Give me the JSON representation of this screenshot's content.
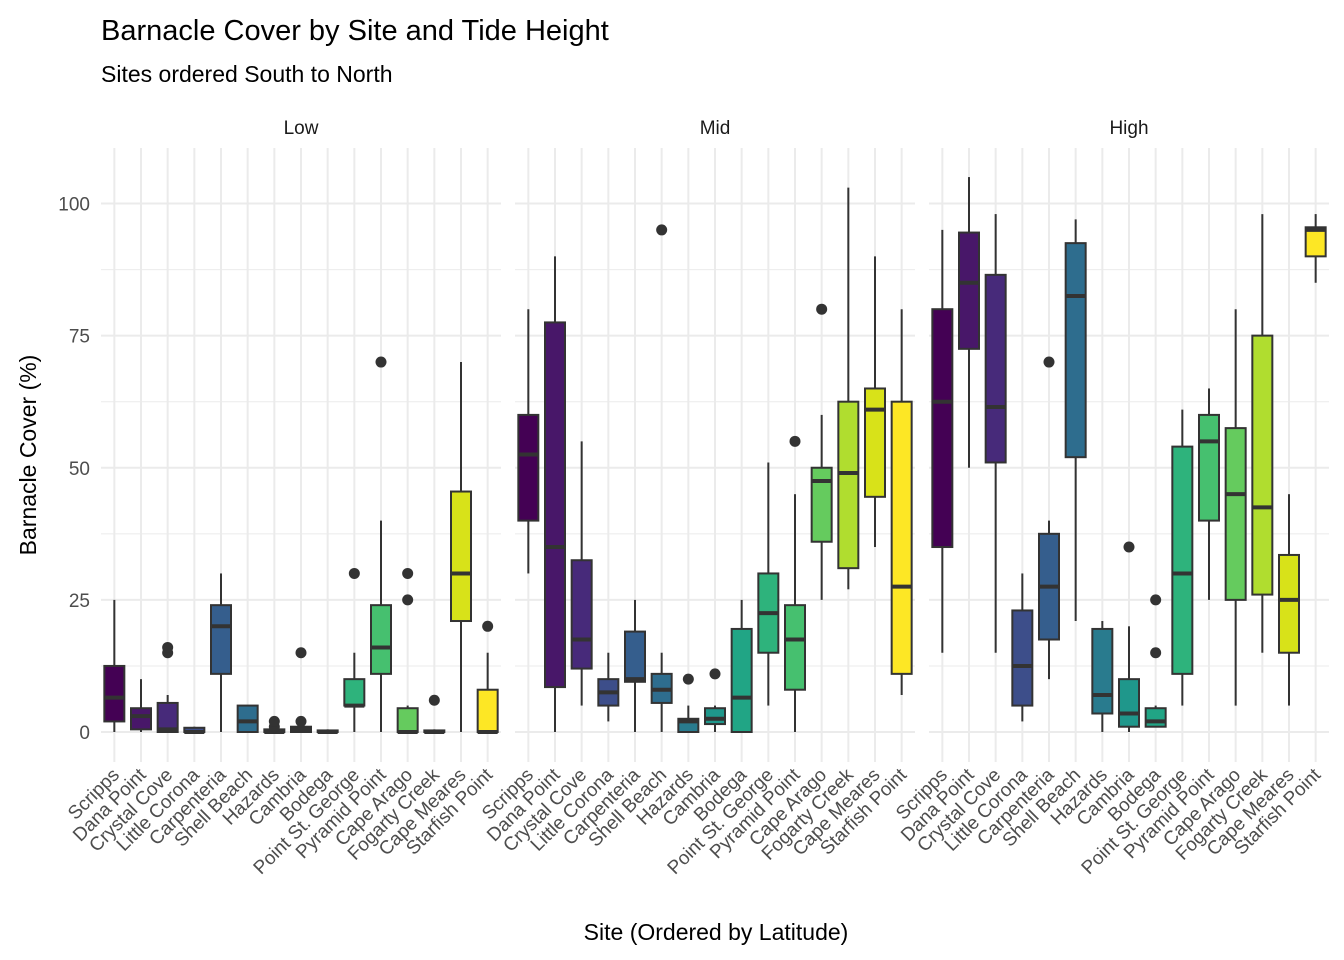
{
  "chart_data": {
    "type": "boxplot",
    "title": "Barnacle Cover by Site and Tide Height",
    "subtitle": "Sites ordered South to North",
    "xlabel": "Site (Ordered by Latitude)",
    "ylabel": "Barnacle Cover (%)",
    "ylim": [
      -5,
      110
    ],
    "yticks": [
      0,
      25,
      50,
      75,
      100
    ],
    "grid": true,
    "legend": "none",
    "sites": [
      "Scripps",
      "Dana Point",
      "Crystal Cove",
      "Little Corona",
      "Carpenteria",
      "Shell Beach",
      "Hazards",
      "Cambria",
      "Bodega",
      "Point St. George",
      "Pyramid Point",
      "Cape Arago",
      "Fogarty Creek",
      "Cape Meares",
      "Starfish Point"
    ],
    "colors": [
      "#440154",
      "#481769",
      "#472a7a",
      "#433d84",
      "#3d4e8a",
      "#355e8d",
      "#2e6d8e",
      "#297b8e",
      "#23898e",
      "#1f978b",
      "#21a585",
      "#2eb37c",
      "#46c06f",
      "#65cb5e",
      "#89d548",
      "#b0dd2f",
      "#d8e219",
      "#fde725"
    ],
    "panels": [
      {
        "label": "Low",
        "boxes": [
          {
            "site": "Scripps",
            "q1": 2,
            "median": 6.5,
            "q3": 12.5,
            "whisker_low": 0,
            "whisker_high": 25,
            "outliers": []
          },
          {
            "site": "Dana Point",
            "q1": 0.5,
            "median": 3,
            "q3": 4.5,
            "whisker_low": 0,
            "whisker_high": 10,
            "outliers": []
          },
          {
            "site": "Crystal Cove",
            "q1": 0,
            "median": 0.5,
            "q3": 5.5,
            "whisker_low": 0,
            "whisker_high": 7,
            "outliers": [
              15,
              16
            ]
          },
          {
            "site": "Little Corona",
            "q1": 0,
            "median": 0,
            "q3": 0.8,
            "whisker_low": 0,
            "whisker_high": 1,
            "outliers": []
          },
          {
            "site": "Carpenteria",
            "q1": 11,
            "median": 20,
            "q3": 24,
            "whisker_low": 0,
            "whisker_high": 30,
            "outliers": []
          },
          {
            "site": "Shell Beach",
            "q1": 0,
            "median": 2,
            "q3": 5,
            "whisker_low": 0,
            "whisker_high": 5,
            "outliers": []
          },
          {
            "site": "Hazards",
            "q1": 0,
            "median": 0,
            "q3": 0.5,
            "whisker_low": 0,
            "whisker_high": 1,
            "outliers": [
              1,
              2
            ]
          },
          {
            "site": "Cambria",
            "q1": 0,
            "median": 0.5,
            "q3": 1,
            "whisker_low": 0,
            "whisker_high": 1,
            "outliers": [
              2,
              15
            ]
          },
          {
            "site": "Bodega",
            "q1": 0,
            "median": 0,
            "q3": 0.3,
            "whisker_low": 0,
            "whisker_high": 0.5,
            "outliers": []
          },
          {
            "site": "Point St. George",
            "q1": 5,
            "median": 5,
            "q3": 10,
            "whisker_low": 0,
            "whisker_high": 15,
            "outliers": [
              30
            ]
          },
          {
            "site": "Pyramid Point",
            "q1": 11,
            "median": 16,
            "q3": 24,
            "whisker_low": 0,
            "whisker_high": 40,
            "outliers": [
              70
            ]
          },
          {
            "site": "Cape Arago",
            "q1": 0,
            "median": 0,
            "q3": 4.5,
            "whisker_low": 0,
            "whisker_high": 5,
            "outliers": [
              25,
              30
            ]
          },
          {
            "site": "Fogarty Creek",
            "q1": 0,
            "median": 0,
            "q3": 0.3,
            "whisker_low": 0,
            "whisker_high": 0.5,
            "outliers": [
              6
            ]
          },
          {
            "site": "Cape Meares",
            "q1": 21,
            "median": 30,
            "q3": 45.5,
            "whisker_low": 0,
            "whisker_high": 70,
            "outliers": []
          },
          {
            "site": "Starfish Point",
            "q1": 0,
            "median": 0,
            "q3": 8,
            "whisker_low": 0,
            "whisker_high": 15,
            "outliers": [
              20
            ]
          }
        ]
      },
      {
        "label": "Mid",
        "boxes": [
          {
            "site": "Scripps",
            "q1": 40,
            "median": 52.5,
            "q3": 60,
            "whisker_low": 30,
            "whisker_high": 80,
            "outliers": []
          },
          {
            "site": "Dana Point",
            "q1": 8.5,
            "median": 35,
            "q3": 77.5,
            "whisker_low": 0,
            "whisker_high": 90,
            "outliers": []
          },
          {
            "site": "Crystal Cove",
            "q1": 12,
            "median": 17.5,
            "q3": 32.5,
            "whisker_low": 5,
            "whisker_high": 55,
            "outliers": []
          },
          {
            "site": "Little Corona",
            "q1": 5,
            "median": 7.5,
            "q3": 10,
            "whisker_low": 2,
            "whisker_high": 15,
            "outliers": []
          },
          {
            "site": "Carpenteria",
            "q1": 9.5,
            "median": 10,
            "q3": 19,
            "whisker_low": 0,
            "whisker_high": 25,
            "outliers": []
          },
          {
            "site": "Shell Beach",
            "q1": 5.5,
            "median": 8,
            "q3": 11,
            "whisker_low": 0,
            "whisker_high": 15,
            "outliers": [
              95
            ]
          },
          {
            "site": "Hazards",
            "q1": 0,
            "median": 2,
            "q3": 2.5,
            "whisker_low": 0,
            "whisker_high": 5,
            "outliers": [
              10
            ]
          },
          {
            "site": "Cambria",
            "q1": 1.5,
            "median": 2.5,
            "q3": 4.5,
            "whisker_low": 0,
            "whisker_high": 5,
            "outliers": [
              11
            ]
          },
          {
            "site": "Bodega",
            "q1": 0,
            "median": 6.5,
            "q3": 19.5,
            "whisker_low": 0,
            "whisker_high": 25,
            "outliers": []
          },
          {
            "site": "Point St. George",
            "q1": 15,
            "median": 22.5,
            "q3": 30,
            "whisker_low": 5,
            "whisker_high": 51,
            "outliers": []
          },
          {
            "site": "Pyramid Point",
            "q1": 8,
            "median": 17.5,
            "q3": 24,
            "whisker_low": 0,
            "whisker_high": 45,
            "outliers": [
              55
            ]
          },
          {
            "site": "Cape Arago",
            "q1": 36,
            "median": 47.5,
            "q3": 50,
            "whisker_low": 25,
            "whisker_high": 60,
            "outliers": [
              80
            ]
          },
          {
            "site": "Fogarty Creek",
            "q1": 31,
            "median": 49,
            "q3": 62.5,
            "whisker_low": 27,
            "whisker_high": 103,
            "outliers": []
          },
          {
            "site": "Cape Meares",
            "q1": 44.5,
            "median": 61,
            "q3": 65,
            "whisker_low": 35,
            "whisker_high": 90,
            "outliers": []
          },
          {
            "site": "Starfish Point",
            "q1": 11,
            "median": 27.5,
            "q3": 62.5,
            "whisker_low": 7,
            "whisker_high": 80,
            "outliers": []
          }
        ]
      },
      {
        "label": "High",
        "boxes": [
          {
            "site": "Scripps",
            "q1": 35,
            "median": 62.5,
            "q3": 80,
            "whisker_low": 15,
            "whisker_high": 95,
            "outliers": []
          },
          {
            "site": "Dana Point",
            "q1": 72.5,
            "median": 85,
            "q3": 94.5,
            "whisker_low": 50,
            "whisker_high": 105,
            "outliers": []
          },
          {
            "site": "Crystal Cove",
            "q1": 51,
            "median": 61.5,
            "q3": 86.5,
            "whisker_low": 15,
            "whisker_high": 98,
            "outliers": []
          },
          {
            "site": "Little Corona",
            "q1": 5,
            "median": 12.5,
            "q3": 23,
            "whisker_low": 2,
            "whisker_high": 30,
            "outliers": []
          },
          {
            "site": "Carpenteria",
            "q1": 17.5,
            "median": 27.5,
            "q3": 37.5,
            "whisker_low": 10,
            "whisker_high": 40,
            "outliers": [
              70
            ]
          },
          {
            "site": "Shell Beach",
            "q1": 52,
            "median": 82.5,
            "q3": 92.5,
            "whisker_low": 21,
            "whisker_high": 97,
            "outliers": []
          },
          {
            "site": "Hazards",
            "q1": 3.5,
            "median": 7,
            "q3": 19.5,
            "whisker_low": 0,
            "whisker_high": 21,
            "outliers": []
          },
          {
            "site": "Cambria",
            "q1": 1,
            "median": 3.5,
            "q3": 10,
            "whisker_low": 0,
            "whisker_high": 20,
            "outliers": [
              35
            ]
          },
          {
            "site": "Bodega",
            "q1": 1,
            "median": 2,
            "q3": 4.5,
            "whisker_low": 1,
            "whisker_high": 5,
            "outliers": [
              15,
              25
            ]
          },
          {
            "site": "Point St. George",
            "q1": 11,
            "median": 30,
            "q3": 54,
            "whisker_low": 5,
            "whisker_high": 61,
            "outliers": []
          },
          {
            "site": "Pyramid Point",
            "q1": 40,
            "median": 55,
            "q3": 60,
            "whisker_low": 25,
            "whisker_high": 65,
            "outliers": []
          },
          {
            "site": "Cape Arago",
            "q1": 25,
            "median": 45,
            "q3": 57.5,
            "whisker_low": 5,
            "whisker_high": 80,
            "outliers": []
          },
          {
            "site": "Fogarty Creek",
            "q1": 26,
            "median": 42.5,
            "q3": 75,
            "whisker_low": 15,
            "whisker_high": 98,
            "outliers": []
          },
          {
            "site": "Cape Meares",
            "q1": 15,
            "median": 25,
            "q3": 33.5,
            "whisker_low": 5,
            "whisker_high": 45,
            "outliers": []
          },
          {
            "site": "Starfish Point",
            "q1": 90,
            "median": 95,
            "q3": 95.5,
            "whisker_low": 85,
            "whisker_high": 98,
            "outliers": []
          }
        ]
      }
    ]
  }
}
